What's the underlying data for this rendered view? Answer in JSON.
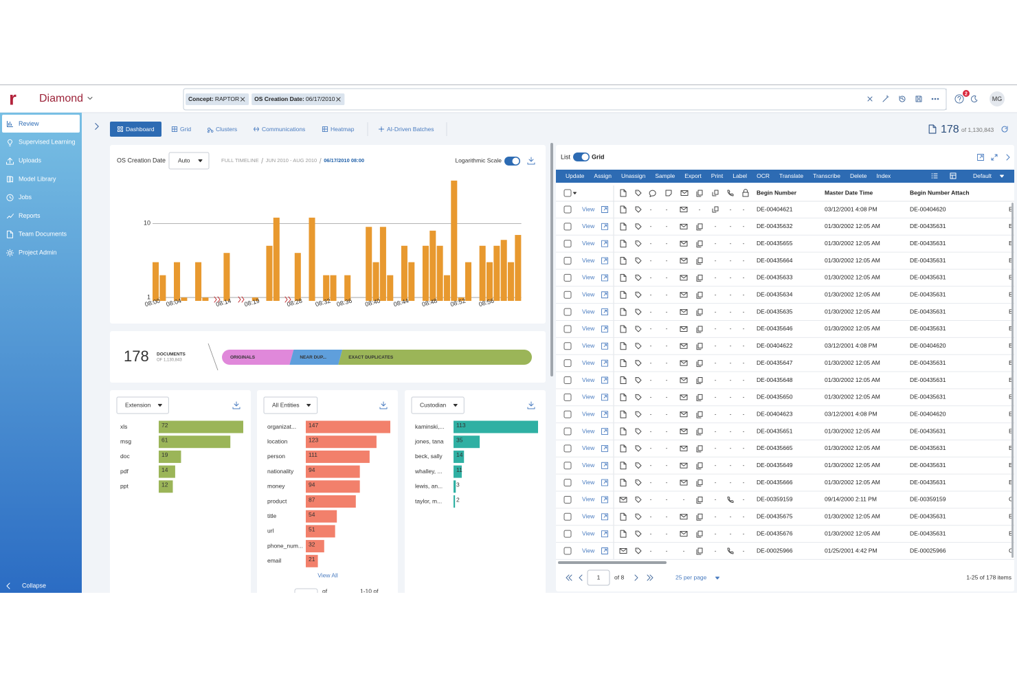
{
  "header": {
    "logo": "r",
    "project": "Diamond",
    "filters": [
      {
        "field": "Concept:",
        "value": "RAPTOR"
      },
      {
        "field": "OS Creation Date:",
        "value": "06/17/2010"
      }
    ],
    "notifications": "2",
    "avatar": "MG"
  },
  "sidebar": {
    "items": [
      "Review",
      "Supervised Learning",
      "Uploads",
      "Model Library",
      "Jobs",
      "Reports",
      "Team Documents",
      "Project Admin"
    ],
    "collapse": "Collapse"
  },
  "tabs": [
    "Dashboard",
    "Grid",
    "Clusters",
    "Communications",
    "Heatmap",
    "AI-Driven Batches"
  ],
  "doc_count": {
    "count": "178",
    "total": "of 1,130,843"
  },
  "timeline": {
    "label": "OS Creation Date",
    "interval": "Auto",
    "breadcrumb": [
      "FULL TIMELINE",
      "JUN 2010 - AUG 2010",
      "06/17/2010 08:00"
    ],
    "scale_toggle": "Logarithmic Scale"
  },
  "chart_data": [
    {
      "type": "bar",
      "log_scale": true,
      "grid": true,
      "color": "#e8992f",
      "categories": [
        "08:00",
        null,
        null,
        "08:04",
        null,
        null,
        null,
        null,
        null,
        null,
        "08:14",
        null,
        null,
        null,
        "08:19",
        null,
        null,
        null,
        null,
        null,
        "08:28",
        null,
        null,
        null,
        "08:32",
        null,
        null,
        "08:36",
        null,
        null,
        null,
        "08:40",
        null,
        null,
        null,
        "08:44",
        null,
        null,
        null,
        "08:48",
        null,
        null,
        null,
        "08:52",
        null,
        null,
        null,
        "08:56",
        null,
        null,
        null,
        null
      ],
      "values": [
        3,
        2,
        null,
        3,
        1,
        null,
        3,
        1,
        null,
        null,
        4,
        null,
        null,
        null,
        1,
        null,
        5,
        12,
        null,
        null,
        4,
        null,
        12,
        null,
        2,
        2,
        null,
        2,
        null,
        null,
        9,
        3,
        9,
        2,
        null,
        5,
        3,
        null,
        5,
        8,
        5,
        2,
        38,
        1,
        3,
        null,
        5,
        3,
        5,
        6,
        3,
        7
      ],
      "ylim": [
        0.9,
        45
      ],
      "yticks": [
        1,
        10
      ]
    },
    {
      "type": "hbar",
      "selector": "Extension",
      "color": "#9bb558",
      "xlim": [
        0,
        72
      ],
      "categories": [
        "xls",
        "msg",
        "doc",
        "pdf",
        "ppt"
      ],
      "values": [
        72,
        61,
        19,
        14,
        12
      ]
    },
    {
      "type": "hbar",
      "selector": "All Entities",
      "color": "#f2806b",
      "xlim": [
        0,
        147
      ],
      "categories": [
        "organizat...",
        "location",
        "person",
        "nationality",
        "money",
        "product",
        "title",
        "url",
        "phone_num...",
        "email"
      ],
      "values": [
        147,
        123,
        111,
        94,
        94,
        87,
        54,
        51,
        32,
        21
      ],
      "footer_link": "View All",
      "pagination": [
        "of",
        "1-10 of"
      ]
    },
    {
      "type": "hbar",
      "selector": "Custodian",
      "color": "#2fb0a3",
      "xlim": [
        0,
        113
      ],
      "categories": [
        "kaminski,...",
        "jones, tana",
        "beck, sally",
        "whalley, ...",
        "lewis, an...",
        "taylor, m..."
      ],
      "values": [
        113,
        35,
        14,
        11,
        3,
        2
      ]
    },
    {
      "type": "stacked_bar",
      "count": "178",
      "count_label": "DOCUMENTS",
      "count_sub": "OF 1,130,843",
      "categories": [
        "ORIGINALS",
        "NEAR DUP...",
        "EXACT DUPLICATES"
      ],
      "values": [
        40,
        28,
        110
      ],
      "colors": [
        "#e088da",
        "#5f9fdc",
        "#9bb558"
      ]
    }
  ],
  "grid": {
    "view_toggle": [
      "List",
      "Grid"
    ],
    "actions": [
      "Update",
      "Assign",
      "Unassign",
      "Sample",
      "Export",
      "Print",
      "Label",
      "OCR",
      "Translate",
      "Transcribe",
      "Delete",
      "Index"
    ],
    "view_preset": "Default",
    "columns": [
      "Begin Number",
      "Master Date Time",
      "Begin Number Attach"
    ],
    "row_action": "View",
    "rows": [
      {
        "cells": [
          "-",
          "-",
          null,
          "-",
          null,
          "-",
          "-"
        ],
        "begin": "DE-00404621",
        "date": "03/12/2001 4:08 PM",
        "attach": "DE-00404620",
        "more": "E"
      },
      {
        "cells": [
          "-",
          "-",
          null,
          null,
          "-",
          "-",
          "-"
        ],
        "begin": "DE-00435632",
        "date": "01/30/2002 12:05 AM",
        "attach": "DE-00435631",
        "more": "E"
      },
      {
        "cells": [
          "-",
          "-",
          null,
          null,
          "-",
          "-",
          "-"
        ],
        "begin": "DE-00435655",
        "date": "01/30/2002 12:05 AM",
        "attach": "DE-00435631",
        "more": "E"
      },
      {
        "cells": [
          "-",
          "-",
          null,
          null,
          "-",
          "-",
          "-"
        ],
        "begin": "DE-00435664",
        "date": "01/30/2002 12:05 AM",
        "attach": "DE-00435631",
        "more": "E"
      },
      {
        "cells": [
          "-",
          "-",
          null,
          null,
          "-",
          "-",
          "-"
        ],
        "begin": "DE-00435633",
        "date": "01/30/2002 12:05 AM",
        "attach": "DE-00435631",
        "more": "E"
      },
      {
        "cells": [
          "-",
          "-",
          null,
          null,
          "-",
          "-",
          "-"
        ],
        "begin": "DE-00435634",
        "date": "01/30/2002 12:05 AM",
        "attach": "DE-00435631",
        "more": "E"
      },
      {
        "cells": [
          "-",
          "-",
          null,
          null,
          "-",
          "-",
          "-"
        ],
        "begin": "DE-00435635",
        "date": "01/30/2002 12:05 AM",
        "attach": "DE-00435631",
        "more": "E"
      },
      {
        "cells": [
          "-",
          "-",
          null,
          null,
          "-",
          "-",
          "-"
        ],
        "begin": "DE-00435646",
        "date": "01/30/2002 12:05 AM",
        "attach": "DE-00435631",
        "more": "E"
      },
      {
        "cells": [
          "-",
          "-",
          null,
          null,
          "-",
          "-",
          "-"
        ],
        "begin": "DE-00404622",
        "date": "03/12/2001 4:08 PM",
        "attach": "DE-00404620",
        "more": "E"
      },
      {
        "cells": [
          "-",
          "-",
          null,
          null,
          "-",
          "-",
          "-"
        ],
        "begin": "DE-00435647",
        "date": "01/30/2002 12:05 AM",
        "attach": "DE-00435631",
        "more": "E"
      },
      {
        "cells": [
          "-",
          "-",
          null,
          null,
          "-",
          "-",
          "-"
        ],
        "begin": "DE-00435648",
        "date": "01/30/2002 12:05 AM",
        "attach": "DE-00435631",
        "more": "E"
      },
      {
        "cells": [
          "-",
          "-",
          null,
          null,
          "-",
          "-",
          "-"
        ],
        "begin": "DE-00435650",
        "date": "01/30/2002 12:05 AM",
        "attach": "DE-00435631",
        "more": "E"
      },
      {
        "cells": [
          "-",
          "-",
          null,
          null,
          "-",
          "-",
          "-"
        ],
        "begin": "DE-00404623",
        "date": "03/12/2001 4:08 PM",
        "attach": "DE-00404620",
        "more": "E"
      },
      {
        "cells": [
          "-",
          "-",
          null,
          null,
          "-",
          "-",
          "-"
        ],
        "begin": "DE-00435651",
        "date": "01/30/2002 12:05 AM",
        "attach": "DE-00435631",
        "more": "E"
      },
      {
        "cells": [
          "-",
          "-",
          null,
          null,
          "-",
          "-",
          "-"
        ],
        "begin": "DE-00435665",
        "date": "01/30/2002 12:05 AM",
        "attach": "DE-00435631",
        "more": "E"
      },
      {
        "cells": [
          "-",
          "-",
          null,
          null,
          "-",
          "-",
          "-"
        ],
        "begin": "DE-00435649",
        "date": "01/30/2002 12:05 AM",
        "attach": "DE-00435631",
        "more": "E"
      },
      {
        "cells": [
          "-",
          "-",
          null,
          null,
          "-",
          "-",
          "-"
        ],
        "begin": "DE-00435666",
        "date": "01/30/2002 12:05 AM",
        "attach": "DE-00435631",
        "more": "E"
      },
      {
        "cells": [
          "-",
          "-",
          "-",
          null,
          "-",
          null,
          "-"
        ],
        "begin": "DE-00359159",
        "date": "09/14/2000 2:11 PM",
        "attach": "DE-00359159",
        "more": "C"
      },
      {
        "cells": [
          "-",
          "-",
          null,
          null,
          "-",
          "-",
          "-"
        ],
        "begin": "DE-00435675",
        "date": "01/30/2002 12:05 AM",
        "attach": "DE-00435631",
        "more": "E"
      },
      {
        "cells": [
          "-",
          "-",
          null,
          null,
          "-",
          "-",
          "-"
        ],
        "begin": "DE-00435676",
        "date": "01/30/2002 12:05 AM",
        "attach": "DE-00435631",
        "more": "E"
      },
      {
        "cells": [
          "-",
          "-",
          "-",
          null,
          "-",
          null,
          "-"
        ],
        "begin": "DE-00025966",
        "date": "01/25/2001 4:42 PM",
        "attach": "DE-00025966",
        "more": "C"
      }
    ],
    "pagination": {
      "page": "1",
      "of": "of 8",
      "per_page": "25 per page",
      "summary": "1-25 of 178 items"
    }
  }
}
